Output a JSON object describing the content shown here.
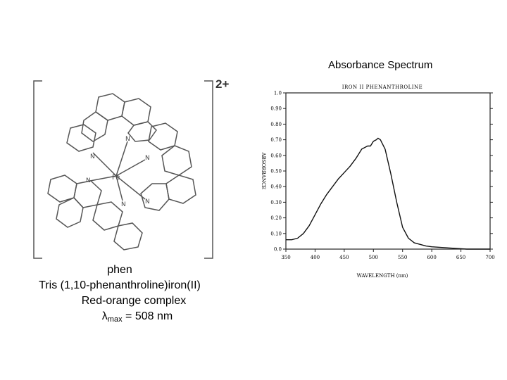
{
  "structure": {
    "charge": "2+",
    "metal": "Fe",
    "n_label": "N"
  },
  "caption": {
    "line1": "phen",
    "line2": "Tris (1,10-phenanthroline)iron(II)",
    "line3": "Red-orange complex",
    "lambda": "λ",
    "lambda_sub": "max",
    "lambda_value": " = 508 nm"
  },
  "spectrum_title": "Absorbance Spectrum",
  "chart_data": {
    "type": "line",
    "title": "IRON II PHENANTHROLINE",
    "xlabel": "WAVELENGTH (nm)",
    "ylabel": "ABSORBANCE",
    "xlim": [
      350,
      700
    ],
    "ylim": [
      0,
      1.0
    ],
    "x_ticks": [
      "350",
      "400",
      "450",
      "500",
      "550",
      "600",
      "650",
      "700"
    ],
    "x_tick_values": [
      350,
      400,
      450,
      500,
      550,
      600,
      650,
      700
    ],
    "y_ticks": [
      "0.0",
      "0.10",
      "0.20",
      "0.30",
      "0.40",
      "0.50",
      "0.60",
      "0.70",
      "0.80",
      "0.90",
      "1.0"
    ],
    "y_tick_values": [
      0.0,
      0.1,
      0.2,
      0.3,
      0.4,
      0.5,
      0.6,
      0.7,
      0.8,
      0.9,
      1.0
    ],
    "series": [
      {
        "x": [
          350,
          360,
          370,
          380,
          390,
          400,
          410,
          420,
          430,
          440,
          450,
          460,
          470,
          480,
          490,
          495,
          500,
          505,
          508,
          512,
          520,
          530,
          540,
          550,
          560,
          570,
          580,
          590,
          600,
          620,
          640,
          660,
          680,
          700
        ],
        "y": [
          0.06,
          0.06,
          0.07,
          0.1,
          0.15,
          0.22,
          0.29,
          0.35,
          0.4,
          0.45,
          0.49,
          0.53,
          0.58,
          0.64,
          0.66,
          0.66,
          0.69,
          0.7,
          0.71,
          0.7,
          0.64,
          0.48,
          0.3,
          0.14,
          0.07,
          0.04,
          0.03,
          0.02,
          0.015,
          0.01,
          0.005,
          0.0,
          0.0,
          0.0
        ]
      }
    ],
    "grid": false
  }
}
